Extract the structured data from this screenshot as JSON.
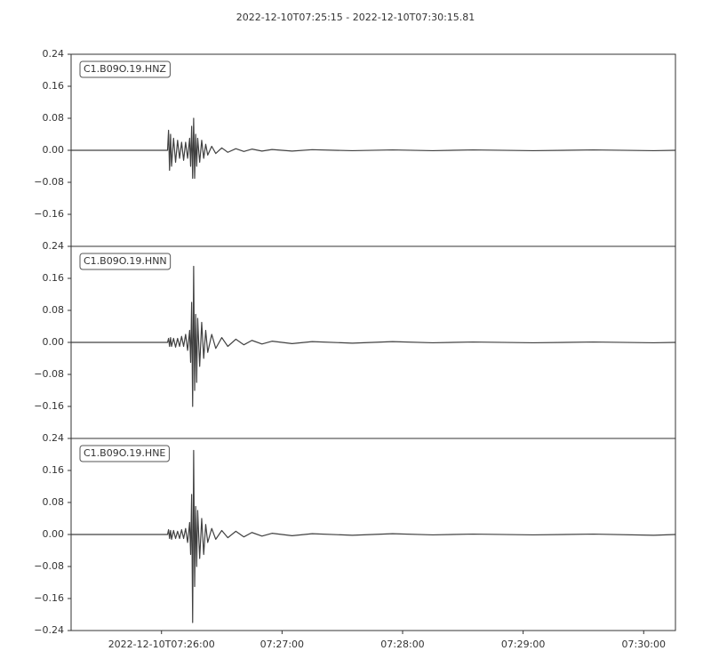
{
  "title": "2022-12-10T07:25:15  -  2022-12-10T07:30:15.81",
  "chart_data": [
    {
      "type": "line",
      "x": [
        0,
        48,
        48.5,
        49,
        49.5,
        50,
        51,
        52,
        53,
        54,
        55,
        56,
        57,
        58,
        59,
        59.5,
        60,
        60.5,
        61,
        61.5,
        62,
        62.5,
        63,
        64,
        65,
        66,
        67,
        68,
        70,
        72,
        75,
        78,
        82,
        86,
        90,
        95,
        100,
        110,
        120,
        140,
        160,
        180,
        200,
        230,
        260,
        290,
        300.81
      ],
      "series": [
        {
          "name": "C1.B09O.19.HNZ",
          "color": "#404040",
          "values": [
            0,
            0,
            0.05,
            -0.05,
            0.04,
            -0.04,
            0.03,
            -0.03,
            0.025,
            -0.02,
            0.02,
            -0.025,
            0.02,
            -0.02,
            0.03,
            -0.04,
            0.06,
            -0.07,
            0.08,
            -0.07,
            0.04,
            -0.04,
            0.03,
            -0.03,
            0.025,
            -0.02,
            0.015,
            -0.012,
            0.01,
            -0.008,
            0.006,
            -0.005,
            0.004,
            -0.003,
            0.003,
            -0.002,
            0.002,
            -0.002,
            0.0015,
            -0.001,
            0.001,
            -0.001,
            0.001,
            -0.001,
            0.001,
            -0.001,
            0
          ]
        }
      ],
      "xlim": [
        0,
        300.81
      ],
      "ylim": [
        -0.24,
        0.24
      ],
      "yticks": [
        {
          "value": -0.16,
          "label": "−0.16"
        },
        {
          "value": -0.08,
          "label": "−0.08"
        },
        {
          "value": 0,
          "label": "0.00"
        },
        0.08,
        0.16,
        0.24
      ]
    },
    {
      "type": "line",
      "x": [
        0,
        48,
        48.5,
        49,
        49.5,
        50,
        51,
        52,
        53,
        54,
        55,
        56,
        57,
        58,
        59,
        59.5,
        60,
        60.5,
        61,
        61.5,
        62,
        62.5,
        63,
        64,
        65,
        66,
        67,
        68,
        70,
        72,
        75,
        78,
        82,
        86,
        90,
        95,
        100,
        110,
        120,
        140,
        160,
        180,
        200,
        230,
        260,
        290,
        300.81
      ],
      "series": [
        {
          "name": "C1.B09O.19.HNN",
          "color": "#404040",
          "values": [
            0,
            0,
            0.01,
            -0.01,
            0.012,
            -0.01,
            0.01,
            -0.012,
            0.01,
            -0.01,
            0.015,
            -0.01,
            0.02,
            -0.02,
            0.03,
            -0.05,
            0.1,
            -0.16,
            0.19,
            -0.12,
            0.07,
            -0.1,
            0.06,
            -0.06,
            0.05,
            -0.04,
            0.03,
            -0.025,
            0.02,
            -0.015,
            0.012,
            -0.01,
            0.008,
            -0.006,
            0.005,
            -0.004,
            0.003,
            -0.003,
            0.002,
            -0.002,
            0.002,
            -0.001,
            0.001,
            -0.001,
            0.001,
            -0.001,
            0
          ]
        }
      ],
      "xlim": [
        0,
        300.81
      ],
      "ylim": [
        -0.24,
        0.24
      ],
      "yticks": [
        {
          "value": -0.16,
          "label": "−0.16"
        },
        {
          "value": -0.08,
          "label": "−0.08"
        },
        {
          "value": 0,
          "label": "0.00"
        },
        0.08,
        0.16,
        0.24
      ]
    },
    {
      "type": "line",
      "x": [
        0,
        48,
        48.5,
        49,
        49.5,
        50,
        51,
        52,
        53,
        54,
        55,
        56,
        57,
        58,
        59,
        59.5,
        60,
        60.5,
        61,
        61.5,
        62,
        62.5,
        63,
        64,
        65,
        66,
        67,
        68,
        70,
        72,
        75,
        78,
        82,
        86,
        90,
        95,
        100,
        110,
        120,
        140,
        160,
        180,
        200,
        230,
        260,
        290,
        300.81
      ],
      "series": [
        {
          "name": "C1.B09O.19.HNE",
          "color": "#404040",
          "values": [
            0,
            0,
            0.012,
            -0.01,
            0.01,
            -0.012,
            0.01,
            -0.01,
            0.008,
            -0.01,
            0.012,
            -0.01,
            0.015,
            -0.02,
            0.03,
            -0.05,
            0.1,
            -0.22,
            0.21,
            -0.13,
            0.07,
            -0.08,
            0.06,
            -0.06,
            0.04,
            -0.05,
            0.025,
            -0.02,
            0.015,
            -0.012,
            0.01,
            -0.008,
            0.008,
            -0.006,
            0.005,
            -0.004,
            0.003,
            -0.003,
            0.002,
            -0.002,
            0.002,
            -0.001,
            0.001,
            -0.001,
            0.001,
            -0.002,
            0
          ]
        }
      ],
      "xlim": [
        0,
        300.81
      ],
      "ylim": [
        -0.24,
        0.24
      ],
      "yticks": [
        {
          "value": -0.24,
          "label": "−0.24"
        },
        {
          "value": -0.16,
          "label": "−0.16"
        },
        {
          "value": -0.08,
          "label": "−0.08"
        },
        {
          "value": 0,
          "label": "0.00"
        },
        0.08,
        0.16,
        0.24
      ],
      "xticks": [
        {
          "value": 45,
          "label": "2022-12-10T07:26:00"
        },
        {
          "value": 105,
          "label": "07:27:00"
        },
        {
          "value": 165,
          "label": "07:28:00"
        },
        {
          "value": 225,
          "label": "07:29:00"
        },
        {
          "value": 285,
          "label": "07:30:00"
        }
      ]
    }
  ]
}
